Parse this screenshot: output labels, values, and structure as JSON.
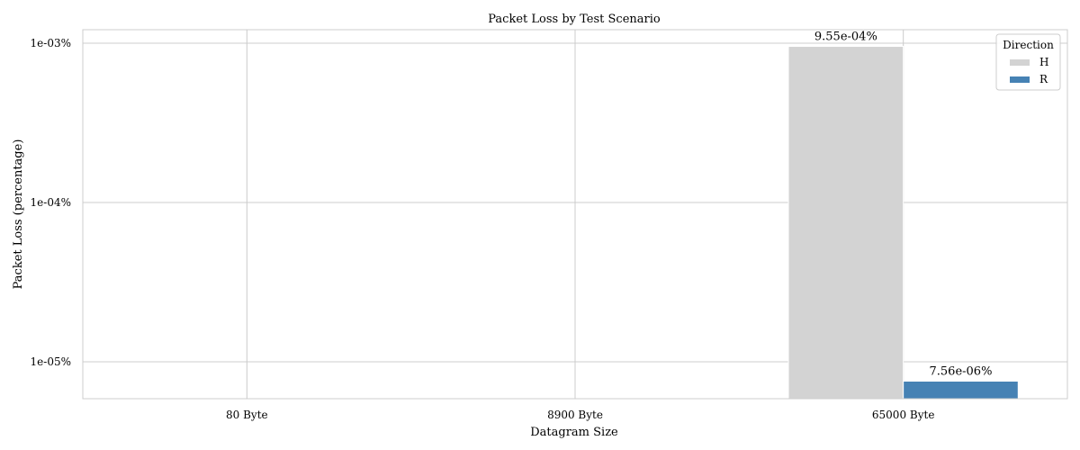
{
  "chart_data": {
    "type": "bar",
    "title": "Packet Loss by Test Scenario",
    "xlabel": "Datagram Size",
    "ylabel": "Packet Loss (percentage)",
    "categories": [
      "80 Byte",
      "8900 Byte",
      "65000 Byte"
    ],
    "series": [
      {
        "name": "H",
        "values": [
          null,
          null,
          0.000955
        ],
        "labels": [
          null,
          null,
          "9.55e-04%"
        ],
        "color": "#d3d3d3"
      },
      {
        "name": "R",
        "values": [
          null,
          null,
          7.56e-06
        ],
        "labels": [
          null,
          null,
          "7.56e-06%"
        ],
        "color": "#4682b4"
      }
    ],
    "yscale": "log",
    "ylim": [
      5.5e-06,
      0.00132
    ],
    "yticks": [
      1e-05,
      0.0001,
      0.001
    ],
    "ytick_labels": [
      "1e-05%",
      "1e-04%",
      "1e-03%"
    ],
    "grid": true,
    "legend": {
      "title": "Direction",
      "placement": "top-right"
    }
  }
}
